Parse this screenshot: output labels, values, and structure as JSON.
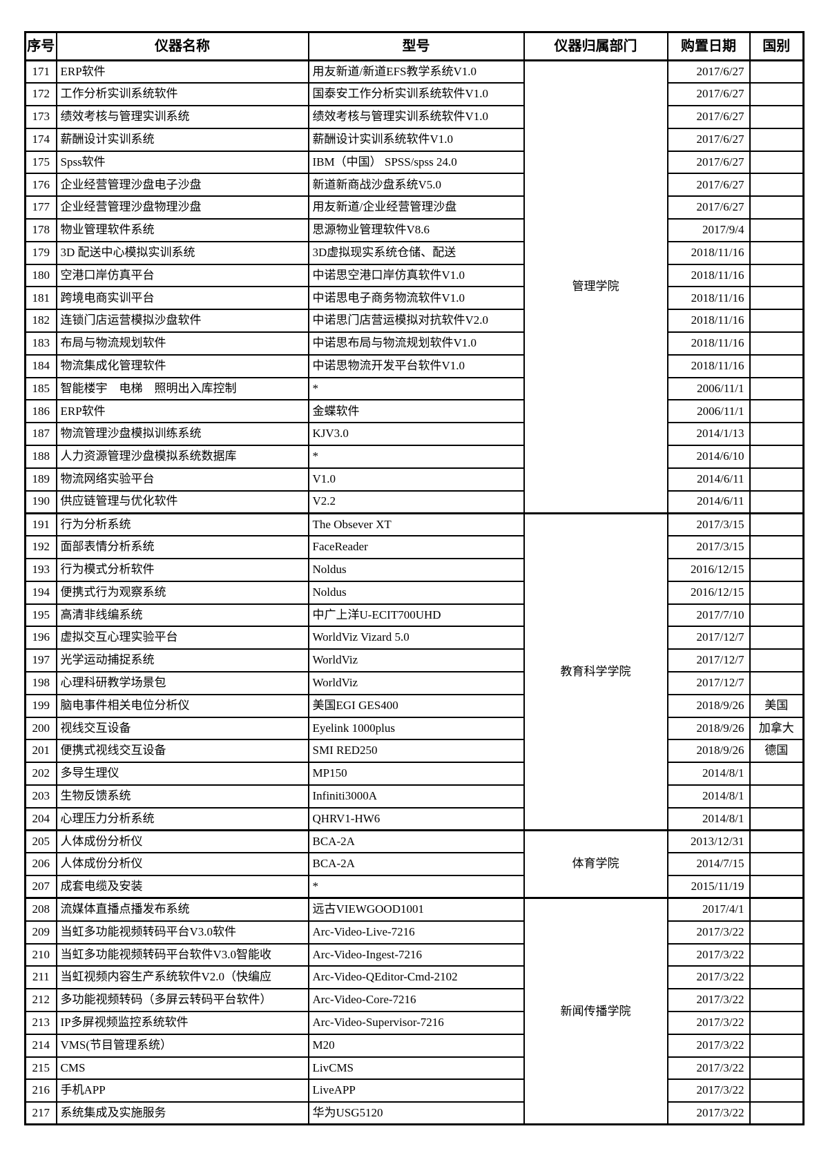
{
  "table": {
    "columns": [
      {
        "key": "no",
        "label": "序号"
      },
      {
        "key": "name",
        "label": "仪器名称"
      },
      {
        "key": "model",
        "label": "型号"
      },
      {
        "key": "dept",
        "label": "仪器归属部门"
      },
      {
        "key": "date",
        "label": "购置日期"
      },
      {
        "key": "country",
        "label": "国别"
      }
    ],
    "groups": [
      {
        "dept": "管理学院",
        "rows": [
          {
            "no": "171",
            "name": "ERP软件",
            "model": "用友新道/新道EFS教学系统V1.0",
            "date": "2017/6/27",
            "country": ""
          },
          {
            "no": "172",
            "name": "工作分析实训系统软件",
            "model": "国泰安工作分析实训系统软件V1.0",
            "date": "2017/6/27",
            "country": ""
          },
          {
            "no": "173",
            "name": "绩效考核与管理实训系统",
            "model": "绩效考核与管理实训系统软件V1.0",
            "date": "2017/6/27",
            "country": ""
          },
          {
            "no": "174",
            "name": "薪酬设计实训系统",
            "model": "薪酬设计实训系统软件V1.0",
            "date": "2017/6/27",
            "country": ""
          },
          {
            "no": "175",
            "name": "Spss软件",
            "model": "IBM（中国） SPSS/spss 24.0",
            "date": "2017/6/27",
            "country": ""
          },
          {
            "no": "176",
            "name": "企业经营管理沙盘电子沙盘",
            "model": "新道新商战沙盘系统V5.0",
            "date": "2017/6/27",
            "country": ""
          },
          {
            "no": "177",
            "name": "企业经营管理沙盘物理沙盘",
            "model": "用友新道/企业经营管理沙盘",
            "date": "2017/6/27",
            "country": ""
          },
          {
            "no": "178",
            "name": "物业管理软件系统",
            "model": "思源物业管理软件V8.6",
            "date": "2017/9/4",
            "country": ""
          },
          {
            "no": "179",
            "name": "3D 配送中心模拟实训系统",
            "model": "3D虚拟现实系统仓储、配送",
            "date": "2018/11/16",
            "country": ""
          },
          {
            "no": "180",
            "name": "空港口岸仿真平台",
            "model": "中诺思空港口岸仿真软件V1.0",
            "date": "2018/11/16",
            "country": ""
          },
          {
            "no": "181",
            "name": "跨境电商实训平台",
            "model": "中诺思电子商务物流软件V1.0",
            "date": "2018/11/16",
            "country": ""
          },
          {
            "no": "182",
            "name": "连锁门店运营模拟沙盘软件",
            "model": "中诺思门店营运模拟对抗软件V2.0",
            "date": "2018/11/16",
            "country": ""
          },
          {
            "no": "183",
            "name": "布局与物流规划软件",
            "model": "中诺思布局与物流规划软件V1.0",
            "date": "2018/11/16",
            "country": ""
          },
          {
            "no": "184",
            "name": "物流集成化管理软件",
            "model": "中诺思物流开发平台软件V1.0",
            "date": "2018/11/16",
            "country": ""
          },
          {
            "no": "185",
            "name": "智能楼宇　电梯　照明出入库控制",
            "model": "*",
            "date": "2006/11/1",
            "country": ""
          },
          {
            "no": "186",
            "name": "ERP软件",
            "model": "金蝶软件",
            "date": "2006/11/1",
            "country": ""
          },
          {
            "no": "187",
            "name": "物流管理沙盘模拟训练系统",
            "model": "KJV3.0",
            "date": "2014/1/13",
            "country": ""
          },
          {
            "no": "188",
            "name": "人力资源管理沙盘模拟系统数据库",
            "model": "*",
            "date": "2014/6/10",
            "country": ""
          },
          {
            "no": "189",
            "name": "物流网络实验平台",
            "model": "V1.0",
            "date": "2014/6/11",
            "country": ""
          },
          {
            "no": "190",
            "name": "供应链管理与优化软件",
            "model": "V2.2",
            "date": "2014/6/11",
            "country": ""
          }
        ]
      },
      {
        "dept": "教育科学学院",
        "rows": [
          {
            "no": "191",
            "name": "行为分析系统",
            "model": "The Obsever XT",
            "date": "2017/3/15",
            "country": ""
          },
          {
            "no": "192",
            "name": "面部表情分析系统",
            "model": "FaceReader",
            "date": "2017/3/15",
            "country": ""
          },
          {
            "no": "193",
            "name": "行为模式分析软件",
            "model": "Noldus",
            "date": "2016/12/15",
            "country": ""
          },
          {
            "no": "194",
            "name": "便携式行为观察系统",
            "model": "Noldus",
            "date": "2016/12/15",
            "country": ""
          },
          {
            "no": "195",
            "name": "高清非线编系统",
            "model": "中广上洋U-ECIT700UHD",
            "date": "2017/7/10",
            "country": ""
          },
          {
            "no": "196",
            "name": "虚拟交互心理实验平台",
            "model": "WorldViz Vizard 5.0",
            "date": "2017/12/7",
            "country": ""
          },
          {
            "no": "197",
            "name": "光学运动捕捉系统",
            "model": "WorldViz",
            "date": "2017/12/7",
            "country": ""
          },
          {
            "no": "198",
            "name": "心理科研教学场景包",
            "model": "WorldViz",
            "date": "2017/12/7",
            "country": ""
          },
          {
            "no": "199",
            "name": "脑电事件相关电位分析仪",
            "model": "美国EGI GES400",
            "date": "2018/9/26",
            "country": "美国"
          },
          {
            "no": "200",
            "name": "视线交互设备",
            "model": "Eyelink 1000plus",
            "date": "2018/9/26",
            "country": "加拿大"
          },
          {
            "no": "201",
            "name": "便携式视线交互设备",
            "model": "SMI RED250",
            "date": "2018/9/26",
            "country": "德国"
          },
          {
            "no": "202",
            "name": "多导生理仪",
            "model": "MP150",
            "date": "2014/8/1",
            "country": ""
          },
          {
            "no": "203",
            "name": "生物反馈系统",
            "model": "Infiniti3000A",
            "date": "2014/8/1",
            "country": ""
          },
          {
            "no": "204",
            "name": "心理压力分析系统",
            "model": "QHRV1-HW6",
            "date": "2014/8/1",
            "country": ""
          }
        ]
      },
      {
        "dept": "体育学院",
        "rows": [
          {
            "no": "205",
            "name": "人体成份分析仪",
            "model": "BCA-2A",
            "date": "2013/12/31",
            "country": ""
          },
          {
            "no": "206",
            "name": "人体成份分析仪",
            "model": "BCA-2A",
            "date": "2014/7/15",
            "country": ""
          },
          {
            "no": "207",
            "name": "成套电缆及安装",
            "model": "*",
            "date": "2015/11/19",
            "country": ""
          }
        ]
      },
      {
        "dept": "新闻传播学院",
        "rows": [
          {
            "no": "208",
            "name": "流媒体直播点播发布系统",
            "model": "远古VIEWGOOD1001",
            "date": "2017/4/1",
            "country": ""
          },
          {
            "no": "209",
            "name": "当虹多功能视频转码平台V3.0软件",
            "model": "Arc-Video-Live-7216",
            "date": "2017/3/22",
            "country": ""
          },
          {
            "no": "210",
            "name": "当虹多功能视频转码平台软件V3.0智能收",
            "model": "Arc-Video-Ingest-7216",
            "date": "2017/3/22",
            "country": ""
          },
          {
            "no": "211",
            "name": "当虹视频内容生产系统软件V2.0（快编应",
            "model": "Arc-Video-QEditor-Cmd-2102",
            "date": "2017/3/22",
            "country": ""
          },
          {
            "no": "212",
            "name": "多功能视频转码（多屏云转码平台软件）",
            "model": "Arc-Video-Core-7216",
            "date": "2017/3/22",
            "country": ""
          },
          {
            "no": "213",
            "name": "IP多屏视频监控系统软件",
            "model": "Arc-Video-Supervisor-7216",
            "date": "2017/3/22",
            "country": ""
          },
          {
            "no": "214",
            "name": "VMS(节目管理系统）",
            "model": "M20",
            "date": "2017/3/22",
            "country": ""
          },
          {
            "no": "215",
            "name": "CMS",
            "model": "LivCMS",
            "date": "2017/3/22",
            "country": ""
          },
          {
            "no": "216",
            "name": "手机APP",
            "model": "LiveAPP",
            "date": "2017/3/22",
            "country": ""
          },
          {
            "no": "217",
            "name": "系统集成及实施服务",
            "model": "华为USG5120",
            "date": "2017/3/22",
            "country": ""
          }
        ]
      }
    ]
  }
}
